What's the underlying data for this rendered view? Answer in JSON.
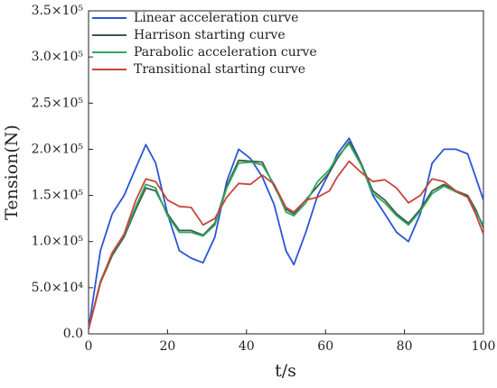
{
  "chart_data": {
    "type": "line",
    "x_label": "t/s",
    "y_label": "Tension(N)",
    "x": [
      0,
      3,
      6,
      9,
      12,
      14.5,
      17,
      20,
      23,
      26,
      29,
      32,
      35,
      38,
      41,
      44,
      47,
      50,
      52,
      55,
      58,
      61,
      63,
      66,
      69,
      72,
      75,
      78,
      81,
      84,
      87,
      90,
      93,
      96,
      98,
      100
    ],
    "series": [
      {
        "name": "Linear acceleration curve",
        "color": "#2b55d6",
        "values": [
          5000,
          90000,
          130000,
          150000,
          180000,
          205000,
          185000,
          130000,
          90000,
          82000,
          77000,
          105000,
          165000,
          200000,
          190000,
          170000,
          140000,
          90000,
          75000,
          110000,
          150000,
          175000,
          195000,
          212000,
          185000,
          150000,
          130000,
          110000,
          100000,
          130000,
          185000,
          200000,
          200000,
          195000,
          170000,
          145000
        ]
      },
      {
        "name": "Harrison starting curve",
        "color": "#3f5a48",
        "values": [
          5000,
          55000,
          85000,
          105000,
          135000,
          158000,
          155000,
          130000,
          112000,
          112000,
          107000,
          120000,
          160000,
          188000,
          187000,
          186000,
          160000,
          135000,
          130000,
          145000,
          160000,
          175000,
          190000,
          208000,
          185000,
          155000,
          145000,
          130000,
          120000,
          135000,
          155000,
          162000,
          155000,
          150000,
          135000,
          115000
        ]
      },
      {
        "name": "Parabolic acceleration curve",
        "color": "#2ea860",
        "values": [
          5000,
          57000,
          87000,
          107000,
          138000,
          162000,
          158000,
          128000,
          110000,
          110000,
          106000,
          118000,
          158000,
          185000,
          186000,
          183000,
          162000,
          132000,
          128000,
          142000,
          165000,
          178000,
          192000,
          206000,
          183000,
          152000,
          142000,
          128000,
          118000,
          133000,
          152000,
          160000,
          154000,
          148000,
          132000,
          118000
        ]
      },
      {
        "name": "Transitional starting curve",
        "color": "#c8463c",
        "values": [
          5000,
          55000,
          88000,
          108000,
          145000,
          168000,
          165000,
          145000,
          138000,
          137000,
          118000,
          125000,
          148000,
          163000,
          162000,
          172000,
          162000,
          137000,
          132000,
          145000,
          148000,
          155000,
          170000,
          187000,
          175000,
          165000,
          167000,
          158000,
          142000,
          150000,
          168000,
          165000,
          155000,
          148000,
          130000,
          108000
        ]
      }
    ],
    "xlim": [
      0,
      100
    ],
    "xticks": [
      0,
      20,
      40,
      60,
      80,
      100
    ],
    "ylim": [
      0,
      350000
    ],
    "yticks": [
      {
        "value": 0,
        "label": "0.0"
      },
      {
        "value": 50000,
        "label": "5.0×10⁴"
      },
      {
        "value": 100000,
        "label": "1.0×10⁵"
      },
      {
        "value": 150000,
        "label": "1.5×10⁵"
      },
      {
        "value": 200000,
        "label": "2.0×10⁵"
      },
      {
        "value": 250000,
        "label": "2.5×10⁵"
      },
      {
        "value": 300000,
        "label": "3.0×10⁵"
      },
      {
        "value": 350000,
        "label": "3.5×10⁵"
      }
    ],
    "legend": "upper left"
  }
}
